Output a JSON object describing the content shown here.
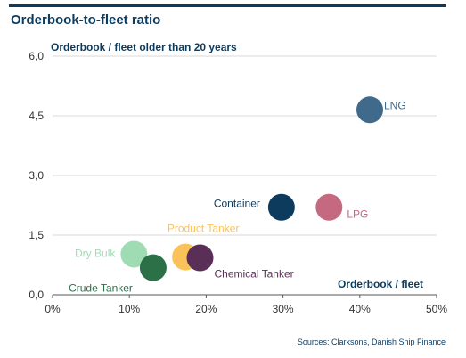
{
  "page": {
    "title": "Orderbook-to-fleet ratio",
    "source": "Sources: Clarksons, Danish Ship Finance"
  },
  "chart_data": {
    "type": "scatter",
    "title": "Orderbook-to-fleet ratio",
    "xlabel": "Orderbook / fleet",
    "ylabel": "Orderbook / fleet older than 20 years",
    "xlim": [
      0,
      50
    ],
    "ylim": [
      0,
      6
    ],
    "x_ticks": [
      "0%",
      "10%",
      "20%",
      "30%",
      "40%",
      "50%"
    ],
    "y_ticks": [
      "0,0",
      "1,5",
      "3,0",
      "4,5",
      "6,0"
    ],
    "grid": "horizontal",
    "series": [
      {
        "name": "LNG",
        "x": 41.3,
        "y": 4.65,
        "color": "#3f6a8c"
      },
      {
        "name": "LPG",
        "x": 36.0,
        "y": 2.2,
        "color": "#c4697f"
      },
      {
        "name": "Container",
        "x": 29.8,
        "y": 2.2,
        "color": "#0d3b5e"
      },
      {
        "name": "Product Tanker",
        "x": 17.3,
        "y": 0.95,
        "color": "#fcc25a"
      },
      {
        "name": "Chemical Tanker",
        "x": 19.2,
        "y": 0.93,
        "color": "#5a2f57"
      },
      {
        "name": "Dry Bulk",
        "x": 10.6,
        "y": 1.02,
        "color": "#9fdcb4"
      },
      {
        "name": "Crude Tanker",
        "x": 13.1,
        "y": 0.68,
        "color": "#2c7048"
      }
    ]
  }
}
